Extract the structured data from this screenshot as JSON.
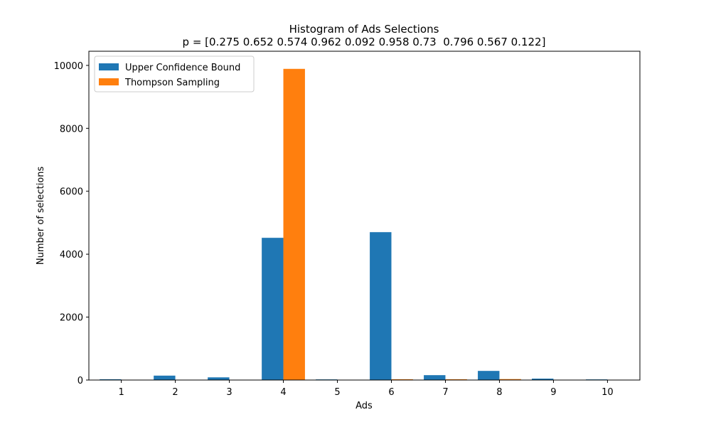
{
  "chart_data": {
    "type": "bar",
    "title": "Histogram of Ads Selections",
    "subtitle": "p = [0.275 0.652 0.574 0.962 0.092 0.958 0.73  0.796 0.567 0.122]",
    "xlabel": "Ads",
    "ylabel": "Number of selections",
    "categories": [
      "1",
      "2",
      "3",
      "4",
      "5",
      "6",
      "7",
      "8",
      "9",
      "10"
    ],
    "ylim": [
      0,
      10450
    ],
    "yticks": [
      0,
      2000,
      4000,
      6000,
      8000,
      10000
    ],
    "grid": false,
    "legend_position": "top-left",
    "series": [
      {
        "name": "Upper Confidence Bound",
        "color": "#1f77b4",
        "values": [
          25,
          140,
          85,
          4520,
          20,
          4700,
          155,
          290,
          45,
          20
        ]
      },
      {
        "name": "Thompson Sampling",
        "color": "#ff7f0e",
        "values": [
          2,
          3,
          3,
          9890,
          2,
          25,
          25,
          30,
          3,
          2
        ]
      }
    ]
  }
}
